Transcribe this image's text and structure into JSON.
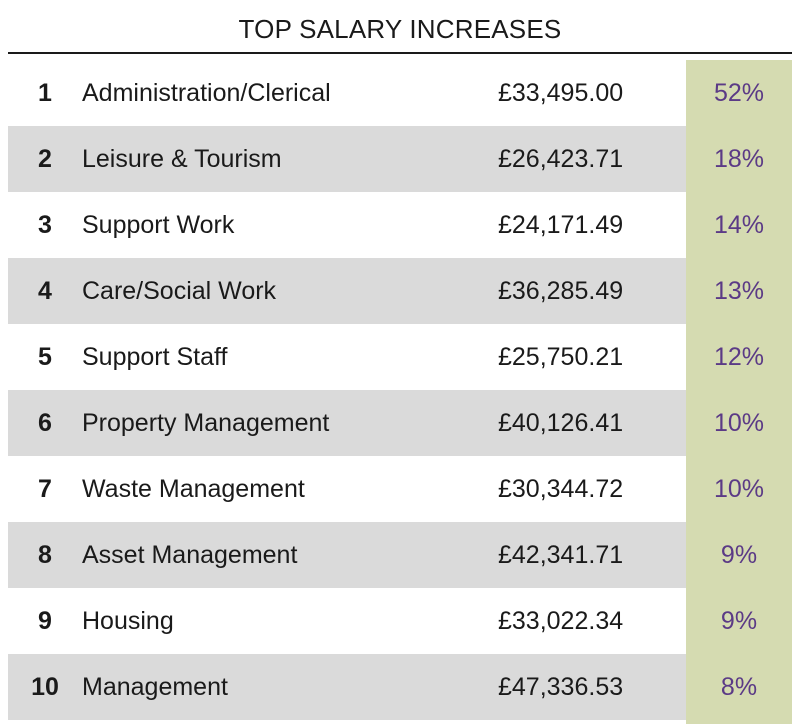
{
  "chart_data": {
    "type": "table",
    "title": "TOP SALARY INCREASES",
    "rows": [
      {
        "rank": "1",
        "job": "Administration/Clerical",
        "salary": "£33,495.00",
        "increase": "52%"
      },
      {
        "rank": "2",
        "job": "Leisure & Tourism",
        "salary": "£26,423.71",
        "increase": "18%"
      },
      {
        "rank": "3",
        "job": "Support Work",
        "salary": "£24,171.49",
        "increase": "14%"
      },
      {
        "rank": "4",
        "job": "Care/Social Work",
        "salary": "£36,285.49",
        "increase": "13%"
      },
      {
        "rank": "5",
        "job": "Support Staff",
        "salary": "£25,750.21",
        "increase": "12%"
      },
      {
        "rank": "6",
        "job": "Property Management",
        "salary": "£40,126.41",
        "increase": "10%"
      },
      {
        "rank": "7",
        "job": "Waste Management",
        "salary": "£30,344.72",
        "increase": "10%"
      },
      {
        "rank": "8",
        "job": "Asset Management",
        "salary": "£42,341.71",
        "increase": "9%"
      },
      {
        "rank": "9",
        "job": "Housing",
        "salary": "£33,022.34",
        "increase": "9%"
      },
      {
        "rank": "10",
        "job": "Management",
        "salary": "£47,336.53",
        "increase": "8%"
      }
    ]
  },
  "colors": {
    "row_shade": "#dadada",
    "percent_column": "#d5dbb1",
    "percent_text": "#5b3a86",
    "text": "#1a1a1a"
  }
}
